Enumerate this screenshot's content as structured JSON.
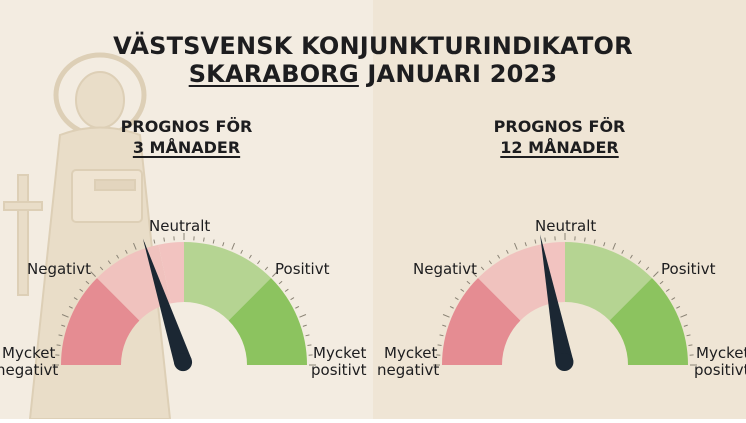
{
  "title": {
    "line1": "VÄSTSVENSK KONJUNKTURINDIKATOR",
    "line2_place": "SKARABORG",
    "line2_rest": " JANUARI 2023"
  },
  "gauges": [
    {
      "heading_line1": "PROGNOS FÖR",
      "heading_line2": "3 MÅNADER",
      "labels": {
        "negativt": "Negativt",
        "neutralt": "Neutralt",
        "positivt": "Positivt",
        "mycket_negativt_1": "Mycket",
        "mycket_negativt_2": "negativt",
        "mycket_positivt_1": "Mycket",
        "mycket_positivt_2": "positivt"
      },
      "needle_fraction": 0.4
    },
    {
      "heading_line1": "PROGNOS FÖR",
      "heading_line2": "12 MÅNADER",
      "labels": {
        "negativt": "Negativt",
        "neutralt": "Neutralt",
        "positivt": "Positivt",
        "mycket_negativt_1": "Mycket",
        "mycket_negativt_2": "negativt",
        "mycket_positivt_1": "Mycket",
        "mycket_positivt_2": "positivt"
      },
      "needle_fraction": 0.44
    }
  ],
  "chart_data": [
    {
      "type": "gauge",
      "title": "PROGNOS FÖR 3 MÅNADER",
      "categories": [
        "Mycket negativt",
        "Negativt",
        "Neutralt",
        "Positivt",
        "Mycket positivt"
      ],
      "needle_fraction": 0.4
    },
    {
      "type": "gauge",
      "title": "PROGNOS FÖR 12 MÅNADER",
      "categories": [
        "Mycket negativt",
        "Negativt",
        "Neutralt",
        "Positivt",
        "Mycket positivt"
      ],
      "needle_fraction": 0.44
    }
  ],
  "colors": {
    "very_negative": "#e58c92",
    "negative": "#f0c2be",
    "neutral_left": "#f2c3c0",
    "neutral_right": "#b8d798",
    "positive": "#b5d492",
    "very_positive": "#8cc35f",
    "needle": "#1b2733"
  }
}
